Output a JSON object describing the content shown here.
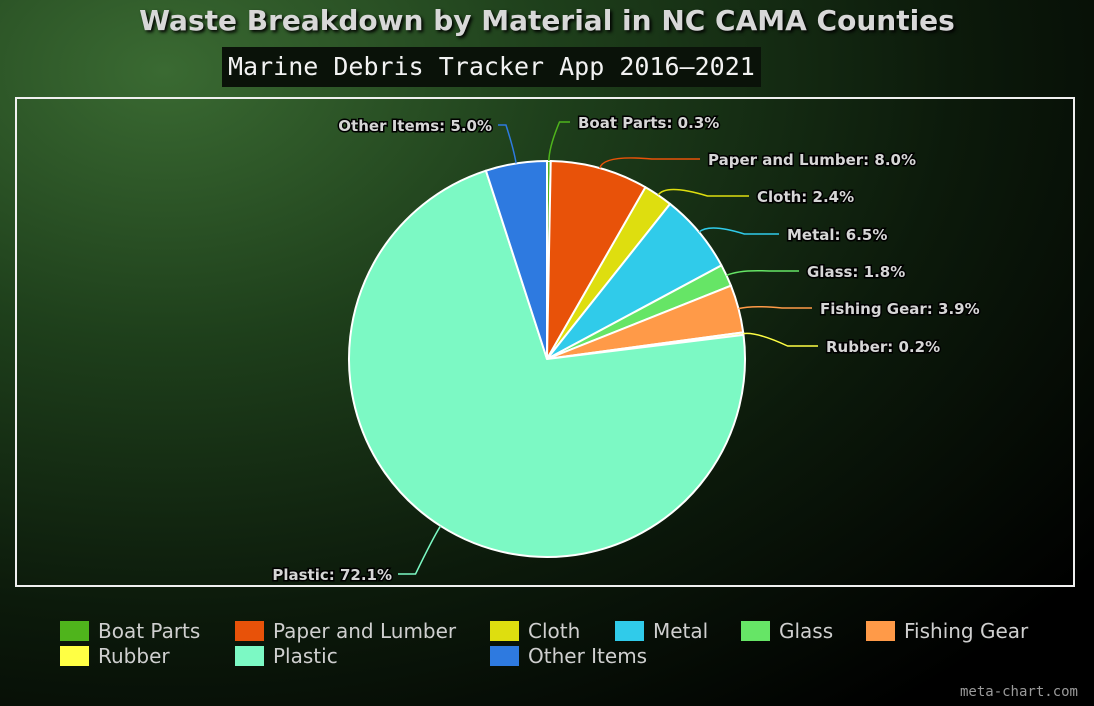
{
  "chart_data": {
    "type": "pie",
    "title": "Waste Breakdown by Material in NC CAMA Counties",
    "subtitle": "Marine Debris Tracker App 2016–2021",
    "legend_position": "bottom",
    "slices": [
      {
        "name": "Boat Parts",
        "value": 0.3,
        "label": "Boat Parts: 0.3%",
        "color": "#4fb41c"
      },
      {
        "name": "Paper and Lumber",
        "value": 8.0,
        "label": "Paper and Lumber: 8.0%",
        "color": "#e85209"
      },
      {
        "name": "Cloth",
        "value": 2.4,
        "label": "Cloth: 2.4%",
        "color": "#dede0f"
      },
      {
        "name": "Metal",
        "value": 6.5,
        "label": "Metal: 6.5%",
        "color": "#30cbea"
      },
      {
        "name": "Glass",
        "value": 1.8,
        "label": "Glass: 1.8%",
        "color": "#66e566"
      },
      {
        "name": "Fishing Gear",
        "value": 3.9,
        "label": "Fishing Gear: 3.9%",
        "color": "#ff9a48"
      },
      {
        "name": "Rubber",
        "value": 0.2,
        "label": "Rubber: 0.2%",
        "color": "#ffff44"
      },
      {
        "name": "Plastic",
        "value": 72.1,
        "label": "Plastic: 72.1%",
        "color": "#7cf9c4"
      },
      {
        "name": "Other Items",
        "value": 5.0,
        "label": "Other Items: 5.0%",
        "color": "#2e7ae0"
      }
    ]
  },
  "footer": {
    "credit": "meta-chart.com"
  }
}
